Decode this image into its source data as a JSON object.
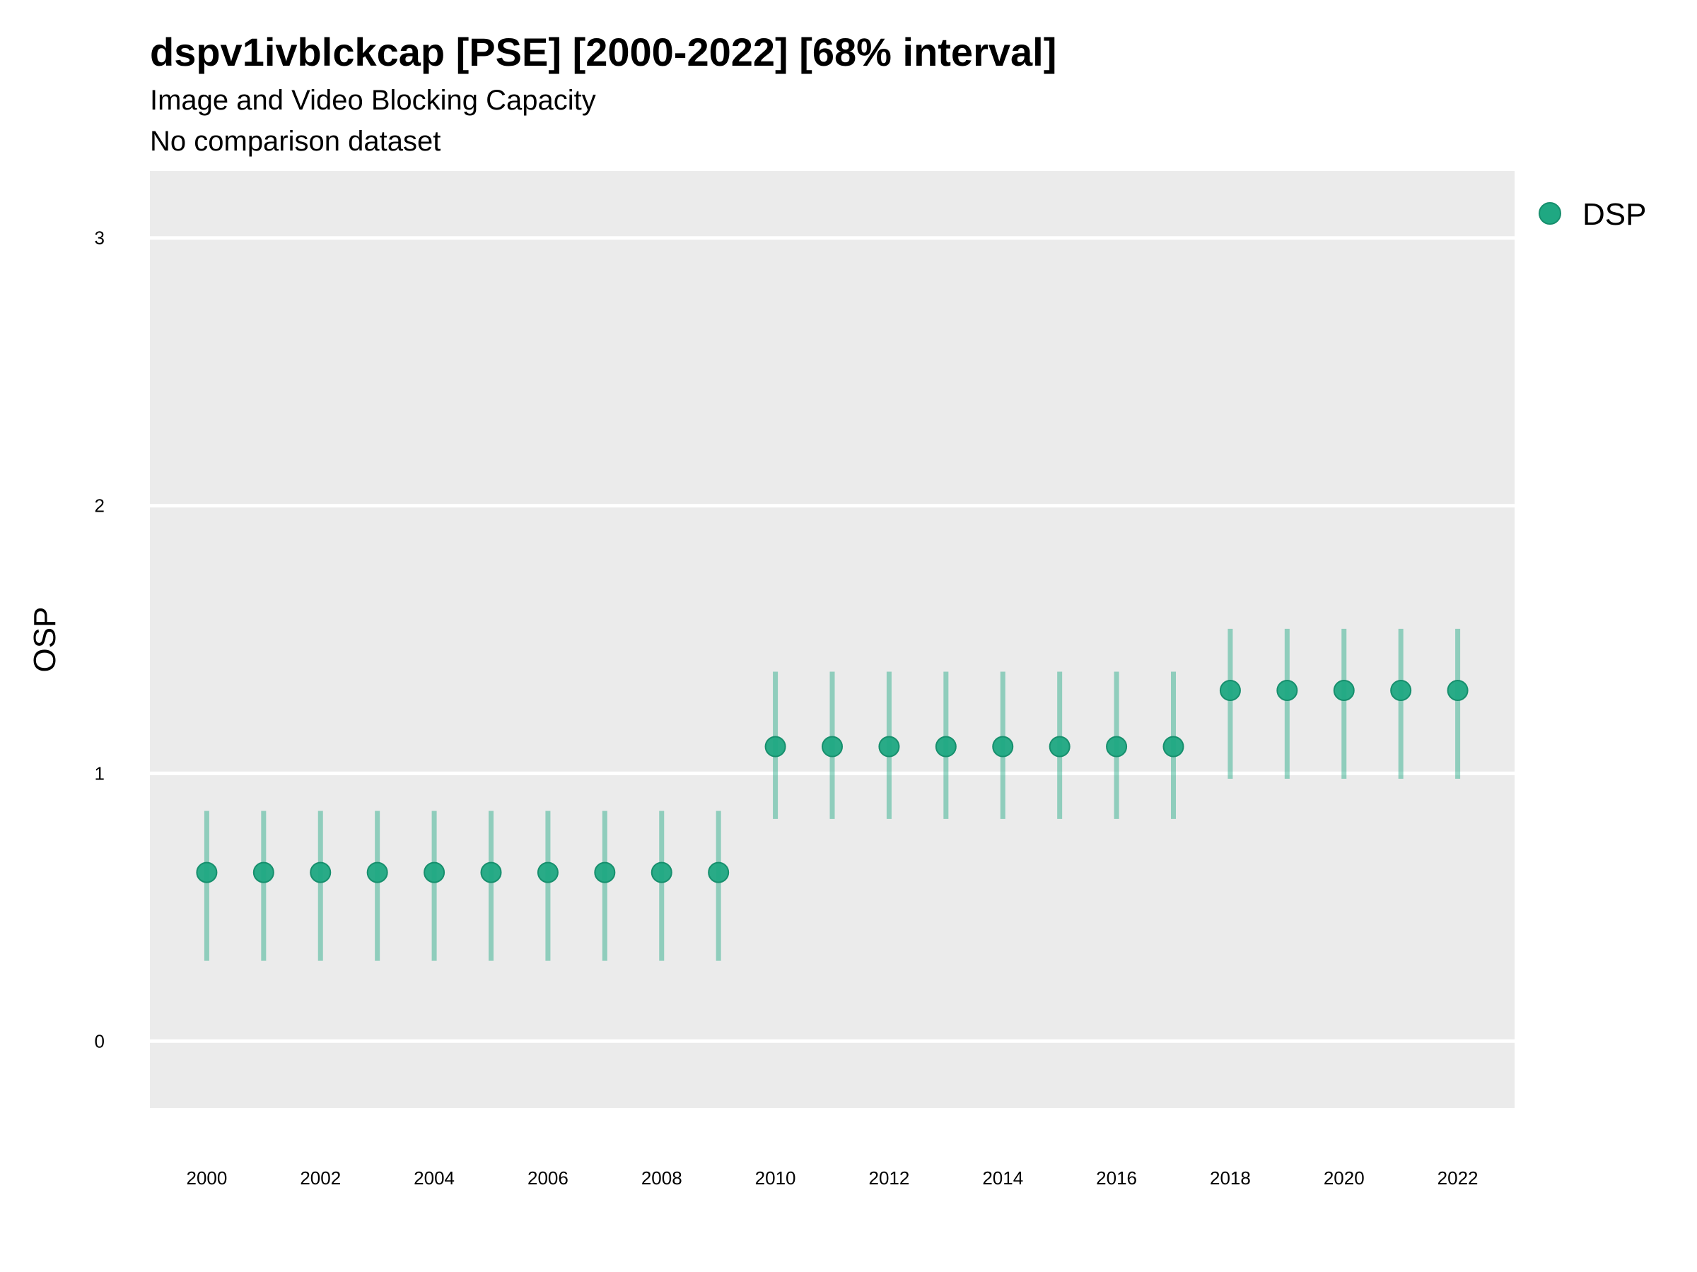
{
  "chart_data": {
    "type": "scatter",
    "title": "dspv1ivblckcap [PSE] [2000-2022] [68% interval]",
    "subtitle": "Image and Video Blocking Capacity",
    "subtitle2": "No comparison dataset",
    "xlabel": "",
    "ylabel": "OSP",
    "xlim": [
      1999.0,
      2023.0
    ],
    "ylim": [
      -0.25,
      3.25
    ],
    "x_ticks": [
      2000,
      2002,
      2004,
      2006,
      2008,
      2010,
      2012,
      2014,
      2016,
      2018,
      2020,
      2022
    ],
    "y_ticks": [
      0,
      1,
      2,
      3
    ],
    "grid": true,
    "legend_position": "right",
    "series": [
      {
        "name": "DSP",
        "color": "#1fa882",
        "x": [
          2000,
          2001,
          2002,
          2003,
          2004,
          2005,
          2006,
          2007,
          2008,
          2009,
          2010,
          2011,
          2012,
          2013,
          2014,
          2015,
          2016,
          2017,
          2018,
          2019,
          2020,
          2021,
          2022
        ],
        "y": [
          0.63,
          0.63,
          0.63,
          0.63,
          0.63,
          0.63,
          0.63,
          0.63,
          0.63,
          0.63,
          1.1,
          1.1,
          1.1,
          1.1,
          1.1,
          1.1,
          1.1,
          1.1,
          1.31,
          1.31,
          1.31,
          1.31,
          1.31
        ],
        "lower": [
          0.3,
          0.3,
          0.3,
          0.3,
          0.3,
          0.3,
          0.3,
          0.3,
          0.3,
          0.3,
          0.83,
          0.83,
          0.83,
          0.83,
          0.83,
          0.83,
          0.83,
          0.83,
          0.98,
          0.98,
          0.98,
          0.98,
          0.98
        ],
        "upper": [
          0.86,
          0.86,
          0.86,
          0.86,
          0.86,
          0.86,
          0.86,
          0.86,
          0.86,
          0.86,
          1.38,
          1.38,
          1.38,
          1.38,
          1.38,
          1.38,
          1.38,
          1.38,
          1.54,
          1.54,
          1.54,
          1.54,
          1.54
        ]
      }
    ],
    "panel_color": "#ebebeb",
    "grid_color": "#ffffff"
  }
}
